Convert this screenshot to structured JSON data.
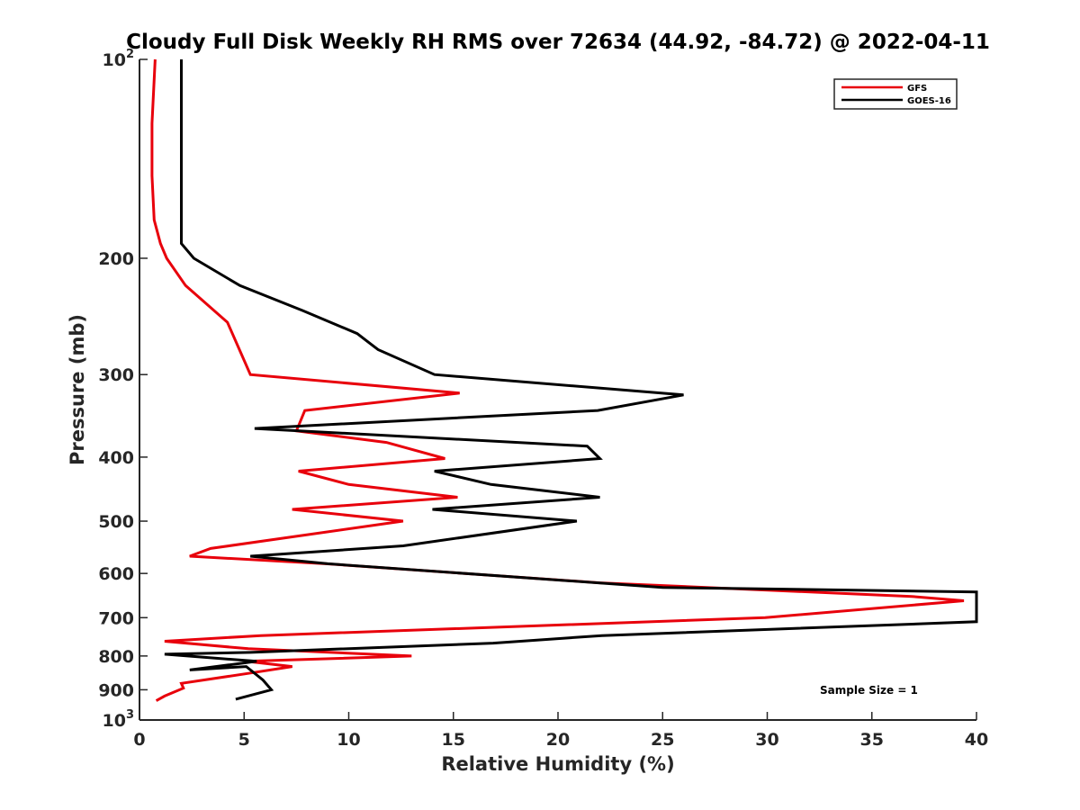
{
  "chart_data": {
    "type": "line",
    "title": "Cloudy Full Disk Weekly RH RMS over 72634 (44.92, -84.72) @ 2022-04-11",
    "xlabel": "Relative Humidity (%)",
    "ylabel": "Pressure (mb)",
    "xlim": [
      0,
      40
    ],
    "ylim": [
      100,
      1000
    ],
    "y_scale": "log",
    "y_reversed": true,
    "x_ticks": [
      "0",
      "5",
      "10",
      "15",
      "20",
      "25",
      "30",
      "35",
      "40"
    ],
    "y_ticks": [
      {
        "value": 100,
        "base": "10",
        "exp": "2"
      },
      {
        "value": 200,
        "label": "200"
      },
      {
        "value": 300,
        "label": "300"
      },
      {
        "value": 400,
        "label": "400"
      },
      {
        "value": 500,
        "label": "500"
      },
      {
        "value": 600,
        "label": "600"
      },
      {
        "value": 700,
        "label": "700"
      },
      {
        "value": 800,
        "label": "800"
      },
      {
        "value": 900,
        "label": "900"
      },
      {
        "value": 1000,
        "base": "10",
        "exp": "3"
      }
    ],
    "grid": false,
    "legend_position": "top-right",
    "annotation": "Sample Size = 1",
    "series": [
      {
        "name": "GFS",
        "color": "#e8000b",
        "points": [
          [
            0.75,
            100
          ],
          [
            0.6,
            125
          ],
          [
            0.6,
            150
          ],
          [
            0.7,
            175
          ],
          [
            1.0,
            190
          ],
          [
            1.3,
            200
          ],
          [
            2.2,
            220
          ],
          [
            4.2,
            250
          ],
          [
            5.3,
            300
          ],
          [
            15.3,
            320
          ],
          [
            7.9,
            340
          ],
          [
            7.5,
            365
          ],
          [
            11.8,
            380
          ],
          [
            14.6,
            402
          ],
          [
            7.6,
            420
          ],
          [
            10.0,
            440
          ],
          [
            15.2,
            460
          ],
          [
            7.3,
            480
          ],
          [
            12.6,
            500
          ],
          [
            3.4,
            550
          ],
          [
            2.4,
            565
          ],
          [
            8.9,
            580
          ],
          [
            22.0,
            620
          ],
          [
            36.9,
            650
          ],
          [
            39.4,
            660
          ],
          [
            29.9,
            700
          ],
          [
            5.8,
            745
          ],
          [
            1.2,
            760
          ],
          [
            5.2,
            780
          ],
          [
            13.0,
            800
          ],
          [
            5.1,
            815
          ],
          [
            7.3,
            830
          ],
          [
            5.2,
            850
          ],
          [
            2.0,
            880
          ],
          [
            2.1,
            895
          ],
          [
            1.2,
            920
          ],
          [
            0.8,
            935
          ]
        ]
      },
      {
        "name": "GOES-16",
        "color": "#000000",
        "points": [
          [
            2.0,
            100
          ],
          [
            2.0,
            150
          ],
          [
            2.0,
            190
          ],
          [
            2.6,
            200
          ],
          [
            4.8,
            220
          ],
          [
            7.8,
            240
          ],
          [
            10.4,
            260
          ],
          [
            11.4,
            275
          ],
          [
            14.1,
            300
          ],
          [
            26.0,
            322
          ],
          [
            21.9,
            340
          ],
          [
            5.5,
            362
          ],
          [
            21.4,
            385
          ],
          [
            22.0,
            402
          ],
          [
            14.1,
            420
          ],
          [
            16.8,
            440
          ],
          [
            22.0,
            460
          ],
          [
            14.0,
            480
          ],
          [
            20.9,
            500
          ],
          [
            12.6,
            545
          ],
          [
            5.3,
            565
          ],
          [
            9.0,
            580
          ],
          [
            25.0,
            630
          ],
          [
            40.0,
            640
          ],
          [
            40.0,
            710
          ],
          [
            22.1,
            745
          ],
          [
            16.9,
            765
          ],
          [
            5.3,
            790
          ],
          [
            1.2,
            795
          ],
          [
            5.6,
            815
          ],
          [
            2.4,
            840
          ],
          [
            5.1,
            830
          ],
          [
            5.9,
            870
          ],
          [
            6.3,
            900
          ],
          [
            4.6,
            930
          ]
        ]
      }
    ]
  }
}
